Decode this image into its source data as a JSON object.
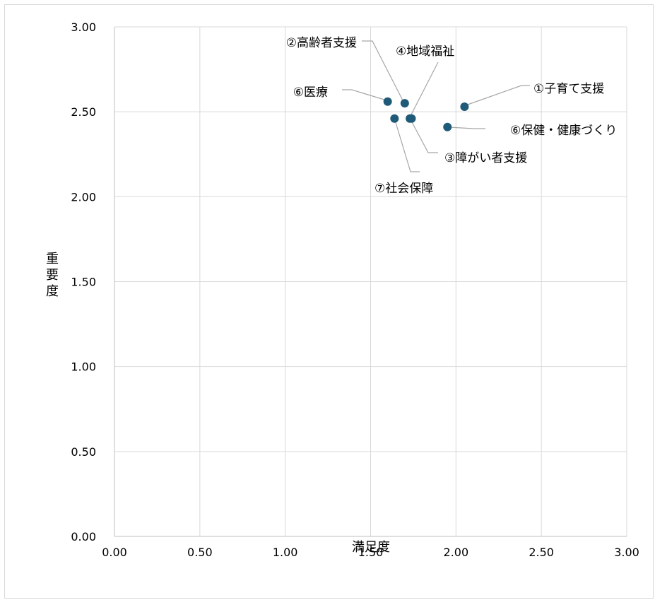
{
  "chart_data": {
    "type": "scatter",
    "title": "",
    "xlabel": "満足度",
    "ylabel": "重要度",
    "xlim": [
      0,
      3
    ],
    "ylim": [
      0,
      3
    ],
    "x_ticks": [
      "0.00",
      "0.50",
      "1.00",
      "1.50",
      "2.00",
      "2.50",
      "3.00"
    ],
    "y_ticks": [
      "0.00",
      "0.50",
      "1.00",
      "1.50",
      "2.00",
      "2.50",
      "3.00"
    ],
    "grid": true,
    "marker_color": "#1f5a78",
    "points": [
      {
        "label": "①子育て支援",
        "x": 2.05,
        "y": 2.53
      },
      {
        "label": "②高齢者支援",
        "x": 1.7,
        "y": 2.55
      },
      {
        "label": "③障がい者支援",
        "x": 1.73,
        "y": 2.46
      },
      {
        "label": "④地域福祉",
        "x": 1.74,
        "y": 2.46
      },
      {
        "label": "⑥医療",
        "x": 1.6,
        "y": 2.56
      },
      {
        "label": "⑥保健・健康づくり",
        "x": 1.95,
        "y": 2.41
      },
      {
        "label": "⑦社会保障",
        "x": 1.64,
        "y": 2.46
      }
    ]
  }
}
